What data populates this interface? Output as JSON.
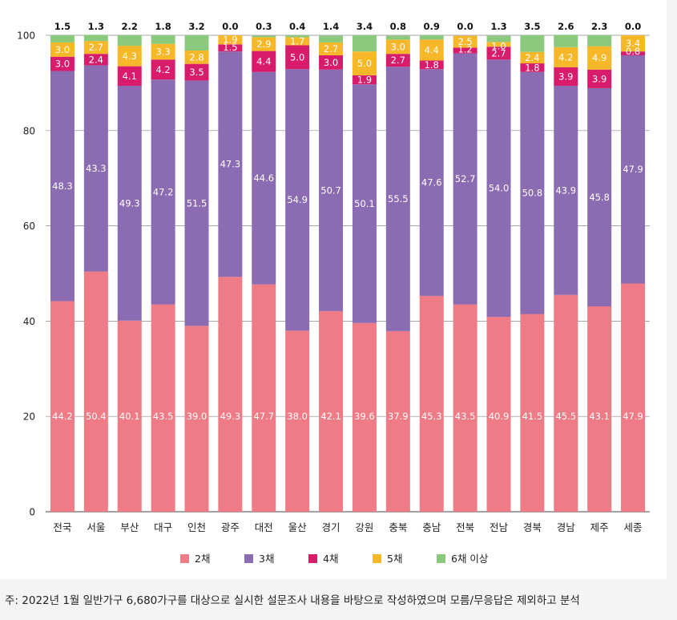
{
  "chart_data": {
    "type": "bar",
    "stacked": true,
    "title": "",
    "xlabel": "",
    "ylabel": "",
    "ylim": [
      0,
      100
    ],
    "yticks": [
      "0",
      "20",
      "40",
      "60",
      "80",
      "100"
    ],
    "categories": [
      "전국",
      "서울",
      "부산",
      "대구",
      "인천",
      "광주",
      "대전",
      "울산",
      "경기",
      "강원",
      "충북",
      "충남",
      "전북",
      "전남",
      "경북",
      "경남",
      "제주",
      "세종"
    ],
    "series": [
      {
        "name": "2채",
        "color": "#ee7b85",
        "values": [
          44.2,
          50.4,
          40.1,
          43.5,
          39.0,
          49.3,
          47.7,
          38.0,
          42.1,
          39.6,
          37.9,
          45.3,
          43.5,
          40.9,
          41.5,
          45.5,
          43.1,
          47.9
        ],
        "labels": [
          "44.2",
          "50.4",
          "40.1",
          "43.5",
          "39.0",
          "49.3",
          "47.7",
          "38.0",
          "42.1",
          "39.6",
          "37.9",
          "45.3",
          "43.5",
          "40.9",
          "41.5",
          "45.5",
          "43.1",
          "47.9"
        ]
      },
      {
        "name": "3채",
        "color": "#8b6bb1",
        "values": [
          48.3,
          43.3,
          49.3,
          47.2,
          51.5,
          47.3,
          44.6,
          54.9,
          50.7,
          50.1,
          55.5,
          47.6,
          52.7,
          54.0,
          50.8,
          43.9,
          45.8,
          47.9
        ],
        "labels": [
          "48.3",
          "43.3",
          "49.3",
          "47.2",
          "51.5",
          "47.3",
          "44.6",
          "54.9",
          "50.7",
          "50.1",
          "55.5",
          "47.6",
          "52.7",
          "54.0",
          "50.8",
          "43.9",
          "45.8",
          "47.9"
        ]
      },
      {
        "name": "4채",
        "color": "#d81b6a",
        "values": [
          3.0,
          2.4,
          4.1,
          4.2,
          3.5,
          1.5,
          4.4,
          5.0,
          3.0,
          1.9,
          2.7,
          1.8,
          1.2,
          2.7,
          1.8,
          3.9,
          3.9,
          0.8
        ],
        "labels": [
          "3.0",
          "2.4",
          "4.1",
          "4.2",
          "3.5",
          "1.5",
          "4.4",
          "5.0",
          "3.0",
          "1.9",
          "2.7",
          "1.8",
          "1.2",
          "2.7",
          "1.8",
          "3.9",
          "3.9",
          "0.8"
        ]
      },
      {
        "name": "5채",
        "color": "#f6b728",
        "values": [
          3.0,
          2.7,
          4.3,
          3.3,
          2.8,
          1.9,
          2.9,
          1.7,
          2.7,
          5.0,
          3.0,
          4.4,
          2.5,
          1.0,
          2.4,
          4.2,
          4.9,
          3.4
        ],
        "labels": [
          "3.0",
          "2.7",
          "4.3",
          "3.3",
          "2.8",
          "1.9",
          "2.9",
          "1.7",
          "2.7",
          "5.0",
          "3.0",
          "4.4",
          "2.5",
          "1.0",
          "2.4",
          "4.2",
          "4.9",
          "3.4"
        ]
      },
      {
        "name": "6채 이상",
        "color": "#8bc97d",
        "values": [
          1.5,
          1.3,
          2.2,
          1.8,
          3.2,
          0.0,
          0.3,
          0.4,
          1.4,
          3.4,
          0.8,
          0.9,
          0.0,
          1.3,
          3.5,
          2.6,
          2.3,
          0.0
        ],
        "labels": [
          "1.5",
          "1.3",
          "2.2",
          "1.8",
          "3.2",
          "0.0",
          "0.3",
          "0.4",
          "1.4",
          "3.4",
          "0.8",
          "0.9",
          "0.0",
          "1.3",
          "3.5",
          "2.6",
          "2.3",
          "0.0"
        ]
      }
    ],
    "legend_position": "bottom",
    "grid": true
  },
  "footnote": "주: 2022년 1월 일반가구 6,680가구를 대상으로 실시한 설문조사 내용을 바탕으로 작성하였으며 모름/무응답은 제외하고 분석"
}
